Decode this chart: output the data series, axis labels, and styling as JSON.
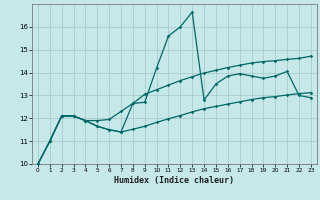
{
  "title": "",
  "xlabel": "Humidex (Indice chaleur)",
  "background_color": "#c6e8e8",
  "grid_color": "#a8cccc",
  "line_color": "#006868",
  "xlim": [
    -0.5,
    23.5
  ],
  "ylim": [
    10,
    17
  ],
  "yticks": [
    10,
    11,
    12,
    13,
    14,
    15,
    16
  ],
  "xticks": [
    0,
    1,
    2,
    3,
    4,
    5,
    6,
    7,
    8,
    9,
    10,
    11,
    12,
    13,
    14,
    15,
    16,
    17,
    18,
    19,
    20,
    21,
    22,
    23
  ],
  "x": [
    0,
    1,
    2,
    3,
    4,
    5,
    6,
    7,
    8,
    9,
    10,
    11,
    12,
    13,
    14,
    15,
    16,
    17,
    18,
    19,
    20,
    21,
    22,
    23
  ],
  "y_main": [
    10.0,
    11.0,
    12.1,
    12.1,
    11.9,
    11.65,
    11.5,
    11.4,
    12.65,
    12.7,
    14.2,
    15.6,
    16.0,
    16.65,
    12.8,
    13.5,
    13.85,
    13.95,
    13.85,
    13.75,
    13.85,
    14.05,
    13.0,
    12.9
  ],
  "y_upper": [
    10.0,
    11.0,
    12.1,
    12.1,
    11.9,
    11.9,
    11.95,
    12.3,
    12.65,
    13.05,
    13.25,
    13.45,
    13.65,
    13.82,
    13.98,
    14.1,
    14.22,
    14.32,
    14.42,
    14.48,
    14.52,
    14.58,
    14.62,
    14.72
  ],
  "y_lower": [
    10.0,
    11.0,
    12.1,
    12.1,
    11.9,
    11.65,
    11.5,
    11.4,
    11.52,
    11.65,
    11.82,
    11.98,
    12.12,
    12.28,
    12.42,
    12.52,
    12.62,
    12.72,
    12.82,
    12.9,
    12.95,
    13.02,
    13.08,
    13.12
  ]
}
